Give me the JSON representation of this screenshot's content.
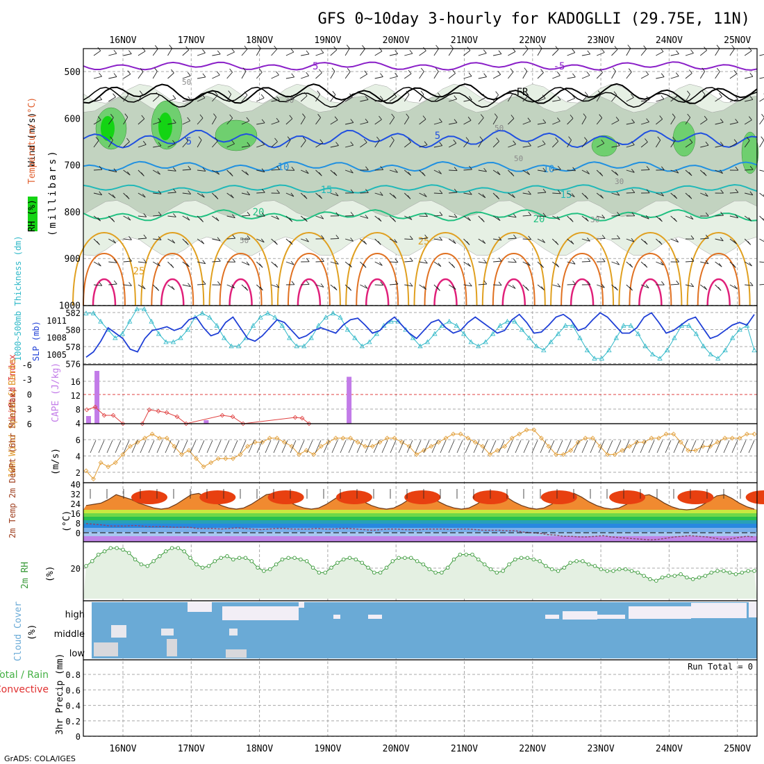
{
  "title": "GFS 0~10day 3-hourly for KADOGLLI (29.75E, 11N)",
  "footer": "GrADS: COLA/IGES",
  "dates": [
    "16NOV",
    "17NOV",
    "18NOV",
    "19NOV",
    "20NOV",
    "21NOV",
    "22NOV",
    "23NOV",
    "24NOV",
    "25NOV"
  ],
  "colors": {
    "grid": "#a8a8a8",
    "rh_light": "#e6f0e4",
    "rh_mid": "#c2d3c0",
    "rh_dark": "#6fcf6f",
    "rh_max": "#14d414",
    "slp": "#1f3fd6",
    "thickness": "#2fb8c8",
    "cape": "#c27be8",
    "li": "#e04040",
    "wind10": "#e09a30",
    "rh2m": "#3a9a3a",
    "cloud": "#6aaad6",
    "cloud_clear": "#f2eef6",
    "precip_total": "#44b044",
    "precip_conv": "#e03030"
  },
  "panels": {
    "upper": {
      "ylabel_rh": "RH (%)",
      "ylabel_temp": "Temperature (°C)",
      "ylabel_wind": "Wind (m/s)",
      "ylabel_units": "(millibars)",
      "ticks": [
        "500",
        "600",
        "700",
        "800",
        "900",
        "1000"
      ],
      "contours": [
        {
          "label": "-5",
          "color": "#8a1fc8"
        },
        {
          "label": "FR",
          "color": "#000000"
        },
        {
          "label": "5",
          "color": "#2050e0"
        },
        {
          "label": "10",
          "color": "#2090e0"
        },
        {
          "label": "15",
          "color": "#20b8b8"
        },
        {
          "label": "20",
          "color": "#20c080"
        },
        {
          "label": "25",
          "color": "#e0a020"
        },
        {
          "label": "30",
          "color": "#e07020"
        }
      ],
      "rh_labels": [
        "50",
        "30"
      ]
    },
    "thickness": {
      "ylabel_left": "1000~500mb Thickness (dm)",
      "ylabel_right": "SLP (mb)",
      "ticks_left": [
        "582",
        "580",
        "578",
        "576"
      ],
      "ticks_right": [
        "1011",
        "1008",
        "1005"
      ]
    },
    "cape": {
      "ylabel_left": "Lifted Index",
      "ylabel_right": "CAPE (J/kg)",
      "ticks_left": [
        "-6",
        "-3",
        "0",
        "3",
        "6"
      ],
      "ticks_right": [
        "16",
        "12",
        "8",
        "4"
      ]
    },
    "wind10": {
      "ylabel": "10m Wind Speed & Barbs",
      "ylabel_units": "(m/s)",
      "ticks": [
        "6",
        "4",
        "2"
      ]
    },
    "temp2m": {
      "ylabel": "2m Temp 2m DewPt (6hr Min/Max)",
      "ylabel_units": "(°C)",
      "ticks": [
        "40",
        "32",
        "24",
        "16",
        "8",
        "0"
      ]
    },
    "rh2m": {
      "ylabel": "2m RH",
      "ylabel_units": "(%)",
      "ticks": [
        "20"
      ]
    },
    "cloud": {
      "ylabel": "Cloud Cover",
      "ylabel_units": "(%)",
      "levels": [
        "high",
        "middle",
        "low"
      ]
    },
    "precip": {
      "ylabel_total": "Total / Rain",
      "ylabel_conv": "Convective",
      "ylabel": "3hr Precip (mm)",
      "ticks": [
        "0.8",
        "0.6",
        "0.4",
        "0.2",
        "0"
      ],
      "run_total": "Run Total = 0"
    }
  },
  "chart_data": {
    "type": "line",
    "x_dates": [
      "16NOV",
      "17NOV",
      "18NOV",
      "19NOV",
      "20NOV",
      "21NOV",
      "22NOV",
      "23NOV",
      "24NOV",
      "25NOV"
    ],
    "slp_mb": [
      1003.5,
      1004.5,
      1006.5,
      1009,
      1008,
      1007,
      1005,
      1004.5,
      1007,
      1008.5,
      1008.8,
      1009.2,
      1008.5,
      1009,
      1010.5,
      1011,
      1009,
      1007.5,
      1008,
      1010,
      1011,
      1009,
      1007,
      1006.5,
      1007.5,
      1009,
      1010.5,
      1010,
      1008.5,
      1007,
      1007.5,
      1008.5,
      1009,
      1008.5,
      1008,
      1009.5,
      1010.5,
      1010.8,
      1009.5,
      1008,
      1008.5,
      1010,
      1011,
      1009.5,
      1008,
      1007,
      1008.5,
      1010,
      1010.5,
      1009,
      1008,
      1008.5,
      1010,
      1011,
      1010,
      1009,
      1008,
      1008.5,
      1010.5,
      1011.5,
      1010,
      1008,
      1008.2,
      1009.5,
      1011,
      1011.5,
      1010.5,
      1008.5,
      1009,
      1010.5,
      1011.8,
      1011,
      1009.5,
      1008,
      1008,
      1009,
      1011,
      1011.8,
      1010,
      1008,
      1008.5,
      1009.5,
      1010.5,
      1011,
      1009,
      1007,
      1007.5,
      1008.5,
      1009.5,
      1010,
      1009.5,
      1011.5
    ],
    "thickness_dm": [
      582,
      582,
      581,
      580,
      579,
      579.5,
      581,
      582.5,
      582.5,
      581,
      579.5,
      578.5,
      578.5,
      579,
      580,
      581.5,
      582,
      581.5,
      580.5,
      579,
      578,
      578,
      579,
      580.5,
      581.5,
      582,
      581.5,
      580.5,
      579,
      578,
      578,
      579,
      580.5,
      581.5,
      582,
      581.5,
      580,
      579,
      578,
      578.5,
      579.5,
      580.5,
      581,
      581,
      580,
      579,
      578,
      578.5,
      579.5,
      580.5,
      581,
      580.5,
      579.5,
      578.5,
      578,
      578.5,
      579.5,
      580.5,
      581,
      581,
      580,
      579,
      578,
      577.5,
      578.5,
      579.5,
      580.5,
      580.5,
      579,
      577.5,
      576.5,
      576.5,
      577.5,
      579,
      580.5,
      580.5,
      579.5,
      578,
      577,
      576.5,
      577.5,
      579,
      580.5,
      580.5,
      579.5,
      578,
      577,
      576.5,
      577.5,
      579,
      580,
      580.5,
      577.5
    ],
    "cape_jkg": [
      2.2,
      15.2,
      0,
      0,
      0,
      0,
      0,
      0,
      0,
      0,
      0,
      0,
      0,
      0,
      1,
      0,
      0,
      0,
      0,
      0,
      0,
      0,
      0,
      0,
      0,
      0,
      0,
      0,
      0,
      0,
      0,
      13.5
    ],
    "li": [
      5,
      4,
      4.5,
      5.5,
      5.5,
      5.5,
      6,
      6,
      6,
      6,
      6,
      6,
      6,
      6,
      4.5,
      4.5,
      5,
      5.5,
      5.5,
      5.5,
      6,
      6,
      6,
      5.5,
      5.5,
      6,
      6,
      6,
      6,
      6
    ],
    "wind10_ms": [
      2,
      1,
      3,
      2.5,
      3,
      4,
      5,
      5.5,
      6,
      6.5,
      6,
      6,
      5,
      4,
      4.5,
      3.5,
      2.5,
      3,
      3.5,
      3.5,
      3.5,
      4,
      5,
      5.5,
      5.5,
      6,
      6,
      5.5,
      5,
      4,
      4.5,
      4,
      5,
      5.5,
      6,
      6,
      6,
      5.5,
      5,
      5,
      5.5,
      6,
      6,
      5.5,
      5,
      4,
      4.5,
      5,
      5.5,
      6,
      6.5,
      6.5,
      6,
      5.5,
      5,
      4,
      4.5,
      5,
      6,
      6.5,
      7,
      7,
      6,
      5,
      4,
      4,
      4.5,
      5.5,
      6,
      6,
      5,
      4,
      4,
      4.5,
      5,
      5.5,
      5.5,
      6,
      6,
      6.5,
      6.5,
      5.5,
      4.5,
      4.5,
      5,
      5,
      5.5,
      6,
      6,
      6,
      6.5,
      6.5
    ],
    "temp2m_c": [
      26,
      27,
      28,
      31,
      35,
      33,
      31,
      28,
      26,
      24,
      23,
      24,
      27,
      31,
      35,
      36,
      33,
      29,
      26,
      24,
      23,
      24,
      27,
      31,
      35,
      36,
      33,
      29,
      26,
      24,
      23,
      24,
      27,
      31,
      35,
      36,
      33,
      29,
      26,
      24,
      23,
      24,
      27,
      31,
      35,
      36,
      33,
      29,
      26,
      24,
      23,
      24,
      27,
      31,
      35,
      36,
      33,
      29,
      26,
      24,
      23,
      24,
      27,
      31,
      35,
      36,
      33,
      29,
      26,
      24,
      23,
      24,
      27,
      30,
      34,
      35,
      32,
      28,
      25,
      23,
      22,
      23,
      26,
      30,
      34,
      35,
      32,
      28,
      25,
      23
    ],
    "dewpt2m_c": [
      11,
      10.5,
      10,
      9,
      9,
      9,
      9.5,
      9,
      8.5,
      8.5,
      8.5,
      8,
      8,
      8,
      7,
      7,
      7,
      6.5,
      7,
      7.5,
      7,
      6.5,
      6,
      6.5,
      7,
      7,
      6.5,
      6.5,
      6.5,
      7,
      6.5,
      6.5,
      7,
      7,
      6.5,
      6,
      5.5,
      6,
      6.5,
      6.5,
      6,
      6,
      6,
      6.5,
      6.5,
      6.5,
      6,
      6.5,
      6.5,
      6,
      5.5,
      5.5,
      5.5,
      5,
      5,
      4,
      3.5,
      3,
      2,
      1.5,
      0.5,
      0.5,
      0,
      0,
      0.5,
      1,
      0,
      -0.5,
      -1,
      -1.5,
      -2,
      -2.5,
      -2,
      -1,
      0,
      0.5,
      1,
      0.5,
      0,
      -1,
      -2,
      -1.5,
      -0.5,
      0.5,
      0
    ],
    "rh2m_pct": [
      21,
      24,
      28,
      30,
      32,
      32,
      31,
      29,
      25,
      22,
      21,
      24,
      27,
      30,
      32,
      32,
      30,
      26,
      22,
      20,
      21,
      24,
      26,
      27,
      25,
      26,
      26,
      24,
      20,
      18,
      19,
      22,
      25,
      26,
      26,
      25,
      24,
      20,
      17,
      17,
      20,
      23,
      25,
      26,
      25,
      23,
      20,
      17,
      17,
      20,
      24,
      26,
      26,
      26,
      24,
      22,
      19,
      17,
      17,
      20,
      25,
      28,
      28,
      28,
      25,
      22,
      19,
      17,
      18,
      22,
      25,
      26,
      26,
      25,
      24,
      21,
      19,
      18,
      20,
      23,
      24,
      24,
      22,
      21,
      19,
      18,
      18,
      19,
      19,
      18,
      17,
      15,
      13,
      12,
      14,
      15,
      15,
      16,
      14,
      13,
      14,
      15,
      17,
      18,
      18,
      17,
      16,
      17,
      18,
      18
    ],
    "precip_mm": [
      0,
      0,
      0,
      0,
      0,
      0,
      0,
      0,
      0,
      0
    ],
    "run_total_mm": 0
  }
}
